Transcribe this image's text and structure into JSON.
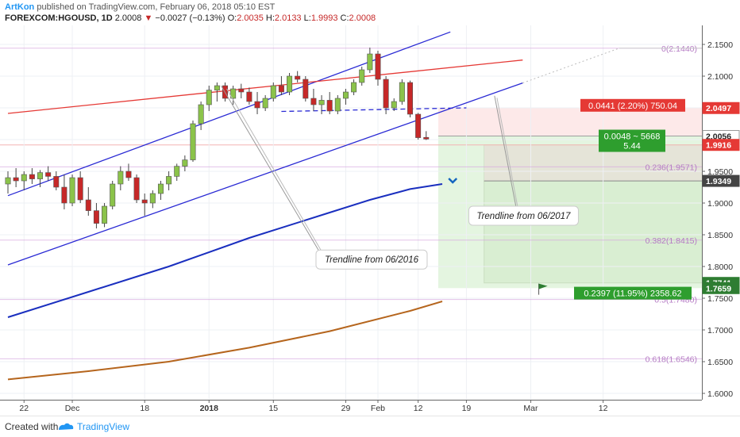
{
  "header": {
    "author": "ArtKon",
    "published": "published on TradingView.com, February 06, 2018 05:10 EST",
    "symbol": "FOREXCOM:HGOUSD, 1D",
    "last": "2.0008",
    "change_arrow": "▼",
    "change": "−0.0027 (−0.13%)",
    "open_label": "O:",
    "open": "2.0035",
    "high_label": "H:",
    "high": "2.0133",
    "low_label": "L:",
    "low": "1.9993",
    "close_label": "C:",
    "close": "2.0008"
  },
  "footer": {
    "created_with": "Created with",
    "brand": "TradingView"
  },
  "colors": {
    "bull": "#8bc34a",
    "bear": "#c62828",
    "channel": "#2a2ad4",
    "resistance": "#e53935",
    "ma_fast": "#1a2fbf",
    "ma_slow": "#b5651d",
    "fib": "#d7a8e0"
  },
  "chart_data": {
    "type": "candlestick",
    "y_axis": {
      "range": [
        1.59,
        2.18
      ],
      "ticks": [
        "2.1500",
        "2.1000",
        "2.0500",
        "2.0000",
        "1.9500",
        "1.9000",
        "1.8500",
        "1.8000",
        "1.7500",
        "1.7000",
        "1.6500",
        "1.6000"
      ]
    },
    "x_axis": {
      "tick_labels": [
        "22",
        "Dec",
        "18",
        "2018",
        "15",
        "29",
        "Feb",
        "12",
        "19",
        "Mar",
        "12"
      ],
      "tick_positions": [
        2,
        8,
        17,
        25,
        33,
        42,
        46,
        51,
        57,
        65,
        74
      ]
    },
    "candles": [
      [
        1.93,
        1.95,
        1.915,
        1.94
      ],
      [
        1.94,
        1.955,
        1.925,
        1.935
      ],
      [
        1.935,
        1.95,
        1.92,
        1.945
      ],
      [
        1.945,
        1.955,
        1.93,
        1.938
      ],
      [
        1.938,
        1.952,
        1.925,
        1.948
      ],
      [
        1.948,
        1.958,
        1.935,
        1.942
      ],
      [
        1.942,
        1.95,
        1.92,
        1.925
      ],
      [
        1.925,
        1.945,
        1.89,
        1.9
      ],
      [
        1.9,
        1.945,
        1.895,
        1.94
      ],
      [
        1.94,
        1.95,
        1.9,
        1.905
      ],
      [
        1.905,
        1.925,
        1.88,
        1.888
      ],
      [
        1.888,
        1.9,
        1.86,
        1.868
      ],
      [
        1.868,
        1.9,
        1.862,
        1.895
      ],
      [
        1.895,
        1.935,
        1.89,
        1.93
      ],
      [
        1.93,
        1.958,
        1.92,
        1.95
      ],
      [
        1.95,
        1.962,
        1.935,
        1.94
      ],
      [
        1.94,
        1.945,
        1.9,
        1.905
      ],
      [
        1.905,
        1.915,
        1.88,
        1.9
      ],
      [
        1.9,
        1.92,
        1.892,
        1.915
      ],
      [
        1.915,
        1.935,
        1.905,
        1.93
      ],
      [
        1.93,
        1.95,
        1.92,
        1.942
      ],
      [
        1.942,
        1.962,
        1.935,
        1.958
      ],
      [
        1.958,
        1.975,
        1.95,
        1.968
      ],
      [
        1.968,
        2.03,
        1.965,
        2.025
      ],
      [
        2.025,
        2.06,
        2.015,
        2.055
      ],
      [
        2.055,
        2.085,
        2.045,
        2.078
      ],
      [
        2.078,
        2.09,
        2.06,
        2.085
      ],
      [
        2.085,
        2.09,
        2.06,
        2.065
      ],
      [
        2.065,
        2.085,
        2.055,
        2.08
      ],
      [
        2.08,
        2.088,
        2.065,
        2.075
      ],
      [
        2.075,
        2.082,
        2.055,
        2.06
      ],
      [
        2.06,
        2.075,
        2.04,
        2.05
      ],
      [
        2.05,
        2.07,
        2.045,
        2.065
      ],
      [
        2.065,
        2.09,
        2.06,
        2.085
      ],
      [
        2.085,
        2.1,
        2.07,
        2.075
      ],
      [
        2.075,
        2.105,
        2.07,
        2.1
      ],
      [
        2.1,
        2.108,
        2.09,
        2.095
      ],
      [
        2.095,
        2.1,
        2.06,
        2.065
      ],
      [
        2.065,
        2.08,
        2.045,
        2.055
      ],
      [
        2.055,
        2.07,
        2.04,
        2.062
      ],
      [
        2.062,
        2.075,
        2.04,
        2.045
      ],
      [
        2.045,
        2.07,
        2.04,
        2.065
      ],
      [
        2.065,
        2.08,
        2.055,
        2.075
      ],
      [
        2.075,
        2.095,
        2.07,
        2.09
      ],
      [
        2.09,
        2.115,
        2.085,
        2.11
      ],
      [
        2.11,
        2.145,
        2.105,
        2.135
      ],
      [
        2.135,
        2.14,
        2.085,
        2.095
      ],
      [
        2.095,
        2.1,
        2.04,
        2.05
      ],
      [
        2.05,
        2.065,
        2.045,
        2.06
      ],
      [
        2.06,
        2.095,
        2.055,
        2.09
      ],
      [
        2.09,
        2.093,
        2.035,
        2.04
      ],
      [
        2.04,
        2.042,
        2.0,
        2.003
      ],
      [
        2.0035,
        2.0133,
        1.9993,
        2.0008
      ]
    ],
    "overlays": {
      "ma_fast": [
        [
          0,
          1.72
        ],
        [
          10,
          1.76
        ],
        [
          20,
          1.8
        ],
        [
          30,
          1.845
        ],
        [
          40,
          1.885
        ],
        [
          45,
          1.905
        ],
        [
          50,
          1.922
        ],
        [
          54,
          1.93
        ]
      ],
      "ma_slow": [
        [
          0,
          1.622
        ],
        [
          10,
          1.635
        ],
        [
          20,
          1.65
        ],
        [
          30,
          1.672
        ],
        [
          40,
          1.698
        ],
        [
          50,
          1.73
        ],
        [
          54,
          1.745
        ]
      ],
      "channel_upper": [
        [
          0,
          1.9116
        ],
        [
          55,
          2.1696
        ]
      ],
      "channel_lower": [
        [
          0,
          1.8025
        ],
        [
          64,
          2.0893
        ]
      ],
      "resistance": [
        [
          0,
          2.0412
        ],
        [
          64,
          2.1254
        ]
      ],
      "dashed_support": [
        [
          34,
          2.0444
        ],
        [
          57,
          2.05
        ]
      ],
      "dotted_extension": [
        [
          64,
          2.0893
        ],
        [
          76,
          2.144
        ]
      ]
    },
    "fib_levels": [
      {
        "level": 2.144,
        "label": "0(2.1440)"
      },
      {
        "level": 1.9571,
        "label": "0.236(1.9571)"
      },
      {
        "level": 1.8415,
        "label": "0.382(1.8415)"
      },
      {
        "level": 1.748,
        "label": "0.5(1.7480)"
      },
      {
        "level": 1.6546,
        "label": "0.618(1.6546)"
      }
    ],
    "position_tool": {
      "entry": 2.0056,
      "stop": 2.0497,
      "target": 1.7659,
      "risk_label": "0.0441 (2.20%) 750.04",
      "reward_label": "0.2397 (11.95%) 2358.62",
      "ratio_label": "0.0048 ~ 5668",
      "ratio_sub": "5.44"
    },
    "inner_target": {
      "top": 1.9916,
      "bottom": 1.7741
    },
    "price_tags": [
      {
        "value": "2.0497",
        "color": "#e53935"
      },
      {
        "value": "2.0056",
        "color": "#ffffff",
        "text": "#222222",
        "border": "#999999"
      },
      {
        "value": "1.9916",
        "color": "#e53935"
      },
      {
        "value": "1.9349",
        "color": "#444444"
      },
      {
        "value": "1.7741",
        "color": "#2e7d32"
      },
      {
        "value": "1.7659",
        "color": "#2e7d32"
      }
    ],
    "annotations": [
      {
        "text": "Trendline from 06/2016"
      },
      {
        "text": "Trendline from 06/2017"
      }
    ]
  }
}
